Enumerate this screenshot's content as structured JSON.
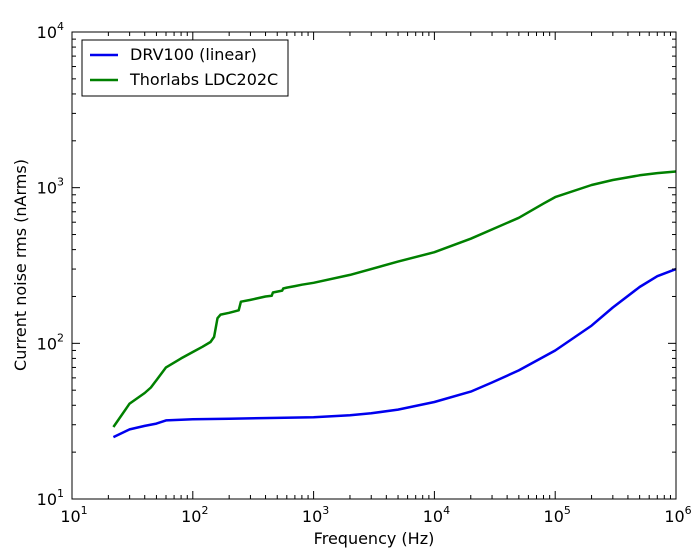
{
  "chart_data": {
    "type": "line",
    "title": "",
    "xlabel": "Frequency (Hz)",
    "ylabel": "Current noise rms (nArms)",
    "xscale": "log",
    "yscale": "log",
    "xlim": [
      10,
      1000000
    ],
    "ylim": [
      10,
      10000
    ],
    "grid": false,
    "legend_position": "top-left",
    "x_ticks": [
      {
        "base": "10",
        "exp": "1",
        "value": 10
      },
      {
        "base": "10",
        "exp": "2",
        "value": 100
      },
      {
        "base": "10",
        "exp": "3",
        "value": 1000
      },
      {
        "base": "10",
        "exp": "4",
        "value": 10000
      },
      {
        "base": "10",
        "exp": "5",
        "value": 100000
      },
      {
        "base": "10",
        "exp": "6",
        "value": 1000000
      }
    ],
    "y_ticks": [
      {
        "base": "10",
        "exp": "1",
        "value": 10
      },
      {
        "base": "10",
        "exp": "2",
        "value": 100
      },
      {
        "base": "10",
        "exp": "3",
        "value": 1000
      },
      {
        "base": "10",
        "exp": "4",
        "value": 10000
      }
    ],
    "series": [
      {
        "name": "DRV100 (linear)",
        "color": "#0000ee",
        "x": [
          22,
          30,
          40,
          50,
          60,
          80,
          100,
          200,
          500,
          1000,
          2000,
          3000,
          5000,
          10000,
          20000,
          30000,
          50000,
          100000,
          200000,
          300000,
          500000,
          700000,
          1000000
        ],
        "y": [
          25,
          28,
          29.5,
          30.5,
          32,
          32.3,
          32.5,
          32.8,
          33.2,
          33.5,
          34.5,
          35.5,
          37.5,
          42,
          49,
          56,
          67,
          90,
          130,
          170,
          230,
          270,
          300
        ]
      },
      {
        "name": "Thorlabs LDC202C",
        "color": "#008000",
        "x": [
          22,
          30,
          40,
          45,
          50,
          60,
          80,
          100,
          120,
          140,
          150,
          160,
          170,
          200,
          240,
          250,
          300,
          400,
          450,
          460,
          500,
          550,
          560,
          600,
          700,
          800,
          1000,
          2000,
          5000,
          10000,
          20000,
          50000,
          80000,
          100000,
          200000,
          300000,
          500000,
          700000,
          1000000
        ],
        "y": [
          29,
          41,
          48,
          52,
          58,
          70,
          80,
          88,
          95,
          102,
          110,
          145,
          153,
          157,
          163,
          185,
          190,
          200,
          202,
          212,
          215,
          218,
          225,
          228,
          233,
          238,
          245,
          275,
          335,
          385,
          470,
          640,
          790,
          870,
          1040,
          1120,
          1200,
          1240,
          1270
        ]
      }
    ]
  }
}
